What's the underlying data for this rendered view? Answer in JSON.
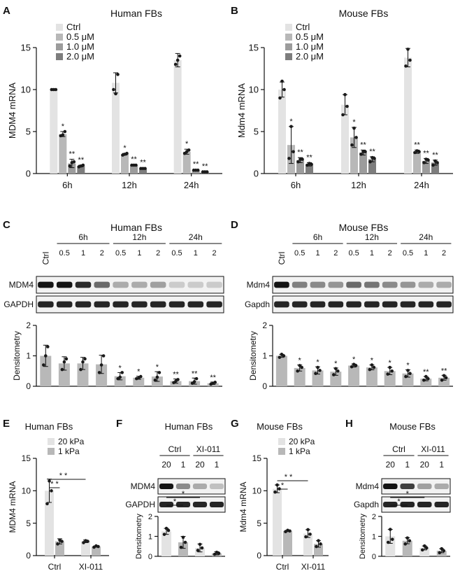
{
  "figure": {
    "colors": {
      "ctrl": "#e3e3e3",
      "c1": "#b8b8b8",
      "c2": "#9c9c9c",
      "c3": "#7d7d7d",
      "dot": "#1a1a1a",
      "text": "#111111"
    },
    "panel_letters": [
      "A",
      "B",
      "C",
      "D",
      "E",
      "F",
      "G",
      "H"
    ]
  },
  "chart_data": [
    {
      "id": "A",
      "type": "bar",
      "title": "Human FBs",
      "ylabel": "MDM4 mRNA",
      "ylim": [
        0,
        15
      ],
      "yticks": [
        0,
        5,
        10,
        15
      ],
      "categories": [
        "6h",
        "12h",
        "24h"
      ],
      "legend": [
        "Ctrl",
        "0.5 μM",
        "1.0 μM",
        "2.0 μM"
      ],
      "series": [
        {
          "name": "Ctrl",
          "values": [
            10.0,
            10.8,
            13.5
          ],
          "err": [
            0.1,
            1.2,
            0.8
          ],
          "pts": [
            [
              10,
              10,
              10
            ],
            [
              10,
              11.8,
              9.5
            ],
            [
              13,
              14,
              13.5
            ]
          ]
        },
        {
          "name": "0.5 μM",
          "values": [
            4.7,
            2.3,
            2.6
          ],
          "err": [
            0.3,
            0.1,
            0.3
          ],
          "pts": [
            [
              4.5,
              5,
              4.6
            ],
            [
              2.2,
              2.4,
              2.3
            ],
            [
              2.4,
              2.8,
              2.6
            ]
          ]
        },
        {
          "name": "1.0 μM",
          "values": [
            1.2,
            1.0,
            0.4
          ],
          "err": [
            0.5,
            0.1,
            0.1
          ],
          "pts": [
            [
              0.9,
              1.4,
              1.3
            ],
            [
              1,
              1,
              1
            ],
            [
              0.4,
              0.4,
              0.4
            ]
          ]
        },
        {
          "name": "2.0 μM",
          "values": [
            0.9,
            0.6,
            0.2
          ],
          "err": [
            0.1,
            0.1,
            0.05
          ],
          "pts": [
            [
              0.8,
              1,
              0.9
            ],
            [
              0.6,
              0.6,
              0.6
            ],
            [
              0.2,
              0.2,
              0.2
            ]
          ]
        }
      ],
      "sig": [
        [
          "",
          "*",
          "**",
          "**"
        ],
        [
          "",
          "*",
          "**",
          "**"
        ],
        [
          "",
          "*",
          "**",
          "**"
        ]
      ]
    },
    {
      "id": "B",
      "type": "bar",
      "title": "Mouse  FBs",
      "ylabel": "Mdm4 mRNA",
      "ylim": [
        0,
        15
      ],
      "yticks": [
        0,
        5,
        10,
        15
      ],
      "categories": [
        "6h",
        "12h",
        "24h"
      ],
      "legend": [
        "Ctrl",
        "0.5 μM",
        "1.0 μM",
        "2.0 μM"
      ],
      "series": [
        {
          "name": "Ctrl",
          "values": [
            10.0,
            8.2,
            13.8
          ],
          "err": [
            0.9,
            1.2,
            1.1
          ],
          "pts": [
            [
              9,
              10,
              11
            ],
            [
              7,
              8,
              9.4
            ],
            [
              12.8,
              13.5,
              14.8
            ]
          ]
        },
        {
          "name": "0.5 μM",
          "values": [
            3.4,
            4.3,
            2.6
          ],
          "err": [
            2.2,
            1.2,
            0.2
          ],
          "pts": [
            [
              1.8,
              2.6,
              5.6
            ],
            [
              3.4,
              4.3,
              5.4
            ],
            [
              2.5,
              2.6,
              2.7
            ]
          ]
        },
        {
          "name": "1.0 μM",
          "values": [
            1.6,
            2.5,
            1.5
          ],
          "err": [
            0.3,
            0.3,
            0.3
          ],
          "pts": [
            [
              1.4,
              1.7,
              1.7
            ],
            [
              2.3,
              2.6,
              2.6
            ],
            [
              1.3,
              1.6,
              1.7
            ]
          ]
        },
        {
          "name": "2.0 μM",
          "values": [
            1.1,
            1.7,
            1.3
          ],
          "err": [
            0.2,
            0.3,
            0.3
          ],
          "pts": [
            [
              1,
              1.1,
              1.2
            ],
            [
              1.4,
              1.8,
              1.9
            ],
            [
              1,
              1.3,
              1.5
            ]
          ]
        }
      ],
      "sig": [
        [
          "",
          "*",
          "**",
          "**"
        ],
        [
          "",
          "*",
          "**",
          "**"
        ],
        [
          "",
          "**",
          "**",
          "**"
        ]
      ]
    },
    {
      "id": "C",
      "type": "bar",
      "title": "Human FBs",
      "ylabel": "Densitometry",
      "ylim": [
        0,
        2
      ],
      "yticks": [
        0,
        1,
        2
      ],
      "header_group": [
        "6h",
        "12h",
        "24h"
      ],
      "header_ctrl": "Ctrl",
      "header_doses": [
        "0.5",
        "1",
        "2"
      ],
      "blot_labels": [
        "MDM4",
        "GAPDH"
      ],
      "values": [
        1.0,
        0.75,
        0.75,
        0.72,
        0.33,
        0.28,
        0.32,
        0.17,
        0.17,
        0.1
      ],
      "err": [
        0.35,
        0.22,
        0.2,
        0.3,
        0.12,
        0.05,
        0.16,
        0.07,
        0.1,
        0.04
      ],
      "pts": [
        [
          0.7,
          1.3,
          1.0
        ],
        [
          0.55,
          0.9,
          0.8
        ],
        [
          0.55,
          0.9,
          0.8
        ],
        [
          0.45,
          1.0,
          0.7
        ],
        [
          0.25,
          0.45,
          0.3
        ],
        [
          0.25,
          0.32,
          0.27
        ],
        [
          0.2,
          0.45,
          0.3
        ],
        [
          0.12,
          0.22,
          0.17
        ],
        [
          0.1,
          0.25,
          0.15
        ],
        [
          0.07,
          0.13,
          0.1
        ]
      ],
      "mdm4_band": [
        1.0,
        1.0,
        0.9,
        0.6,
        0.3,
        0.3,
        0.35,
        0.15,
        0.15,
        0.15
      ],
      "sig": [
        "",
        "",
        "",
        "",
        "*",
        "*",
        "*",
        "**",
        "**",
        "**"
      ]
    },
    {
      "id": "D",
      "type": "bar",
      "title": "Mouse  FBs",
      "ylabel": "Densitometry",
      "ylim": [
        0,
        2
      ],
      "yticks": [
        0,
        1,
        2
      ],
      "header_group": [
        "6h",
        "12h",
        "24h"
      ],
      "header_ctrl": "Ctrl",
      "header_doses": [
        "0.5",
        "1",
        "2"
      ],
      "blot_labels": [
        "Mdm4",
        "Gapdh"
      ],
      "values": [
        1.0,
        0.6,
        0.52,
        0.48,
        0.68,
        0.62,
        0.5,
        0.42,
        0.25,
        0.28
      ],
      "err": [
        0.05,
        0.1,
        0.12,
        0.12,
        0.05,
        0.08,
        0.12,
        0.12,
        0.07,
        0.08
      ],
      "pts": [
        [
          0.95,
          1.0,
          1.05
        ],
        [
          0.5,
          0.62,
          0.68
        ],
        [
          0.42,
          0.52,
          0.62
        ],
        [
          0.38,
          0.5,
          0.58
        ],
        [
          0.64,
          0.68,
          0.72
        ],
        [
          0.55,
          0.62,
          0.7
        ],
        [
          0.4,
          0.5,
          0.62
        ],
        [
          0.32,
          0.42,
          0.52
        ],
        [
          0.2,
          0.25,
          0.32
        ],
        [
          0.2,
          0.28,
          0.35
        ]
      ],
      "mdm4_band": [
        1.0,
        0.5,
        0.45,
        0.4,
        0.6,
        0.55,
        0.45,
        0.4,
        0.3,
        0.3
      ],
      "sig": [
        "",
        "*",
        "*",
        "*",
        "*",
        "*",
        "*",
        "*",
        "**",
        "**"
      ]
    },
    {
      "id": "E",
      "type": "bar",
      "title": "Human FBs",
      "ylabel": "MDM4 mRNA",
      "ylim": [
        0,
        15
      ],
      "yticks": [
        0,
        5,
        10,
        15
      ],
      "categories": [
        "Ctrl",
        "XI-011"
      ],
      "legend": [
        "20 kPa",
        "1 kPa"
      ],
      "series": [
        {
          "name": "20 kPa",
          "values": [
            10.0,
            2.2
          ],
          "err": [
            1.8,
            0.2
          ],
          "pts": [
            [
              8,
              10,
              11.5
            ],
            [
              2,
              2.2,
              2.3
            ]
          ]
        },
        {
          "name": "1 kPa",
          "values": [
            2.2,
            1.4
          ],
          "err": [
            0.4,
            0.1
          ],
          "pts": [
            [
              1.8,
              2.2,
              2.4
            ],
            [
              1.3,
              1.4,
              1.5
            ]
          ]
        }
      ],
      "brackets": [
        {
          "from": [
            0,
            0
          ],
          "to": [
            0,
            1
          ],
          "label": "* *",
          "level": 0
        },
        {
          "from": [
            0,
            0
          ],
          "to": [
            1,
            0
          ],
          "label": "* *",
          "level": 1
        }
      ]
    },
    {
      "id": "F",
      "type": "bar",
      "title": "Human FBs",
      "ylabel": "Densitometry",
      "ylim": [
        0,
        2
      ],
      "yticks": [
        0,
        1,
        2
      ],
      "header_group": [
        "Ctrl",
        "XI-011"
      ],
      "header_lanes": [
        "20",
        "1",
        "20",
        "1"
      ],
      "blot_labels": [
        "MDM4",
        "GAPDH"
      ],
      "values": [
        1.25,
        0.7,
        0.42,
        0.15
      ],
      "err": [
        0.15,
        0.3,
        0.2,
        0.08
      ],
      "pts": [
        [
          1.1,
          1.3,
          1.4
        ],
        [
          0.45,
          0.7,
          0.95
        ],
        [
          0.3,
          0.42,
          0.6
        ],
        [
          0.1,
          0.15,
          0.2
        ]
      ],
      "mdm4_band": [
        1.0,
        0.45,
        0.3,
        0.2
      ],
      "brackets": [
        {
          "from": 0,
          "to": 1,
          "label": "*",
          "level": 0
        },
        {
          "from": 0,
          "to": 2,
          "label": "*",
          "level": 1
        }
      ]
    },
    {
      "id": "G",
      "type": "bar",
      "title": "Mouse  FBs",
      "ylabel": "Mdm4 mRNA",
      "ylim": [
        0,
        15
      ],
      "yticks": [
        0,
        5,
        10,
        15
      ],
      "categories": [
        "Ctrl",
        "XI-011"
      ],
      "legend": [
        "20 kPa",
        "1 kPa"
      ],
      "series": [
        {
          "name": "20 kPa",
          "values": [
            10.3,
            3.4
          ],
          "err": [
            0.6,
            0.6
          ],
          "pts": [
            [
              9.8,
              10.3,
              10.9
            ],
            [
              2.9,
              3.3,
              4.0
            ]
          ]
        },
        {
          "name": "1 kPa",
          "values": [
            3.8,
            1.8
          ],
          "err": [
            0.1,
            0.5
          ],
          "pts": [
            [
              3.7,
              3.8,
              3.9
            ],
            [
              1.4,
              1.8,
              2.3
            ]
          ]
        }
      ],
      "brackets": [
        {
          "from": [
            0,
            0
          ],
          "to": [
            0,
            1
          ],
          "label": "*",
          "level": 0
        },
        {
          "from": [
            0,
            0
          ],
          "to": [
            1,
            0
          ],
          "label": "* *",
          "level": 1
        }
      ]
    },
    {
      "id": "H",
      "type": "bar",
      "title": "Mouse  FBs",
      "ylabel": "Densitometry",
      "ylim": [
        0,
        2
      ],
      "yticks": [
        0,
        1,
        2
      ],
      "header_group": [
        "Ctrl",
        "XI-011"
      ],
      "header_lanes": [
        "20",
        "1",
        "20",
        "1"
      ],
      "blot_labels": [
        "Mdm4",
        "Gapdh"
      ],
      "values": [
        1.0,
        0.78,
        0.42,
        0.28
      ],
      "err": [
        0.35,
        0.15,
        0.1,
        0.1
      ],
      "pts": [
        [
          0.7,
          0.85,
          1.35
        ],
        [
          0.62,
          0.78,
          0.92
        ],
        [
          0.32,
          0.42,
          0.52
        ],
        [
          0.18,
          0.28,
          0.38
        ]
      ],
      "mdm4_band": [
        1.0,
        0.8,
        0.35,
        0.3
      ],
      "brackets": [
        {
          "from": 0,
          "to": 1,
          "label": "*",
          "level": 0
        },
        {
          "from": 0,
          "to": 2,
          "label": "*",
          "level": 1
        }
      ]
    }
  ]
}
